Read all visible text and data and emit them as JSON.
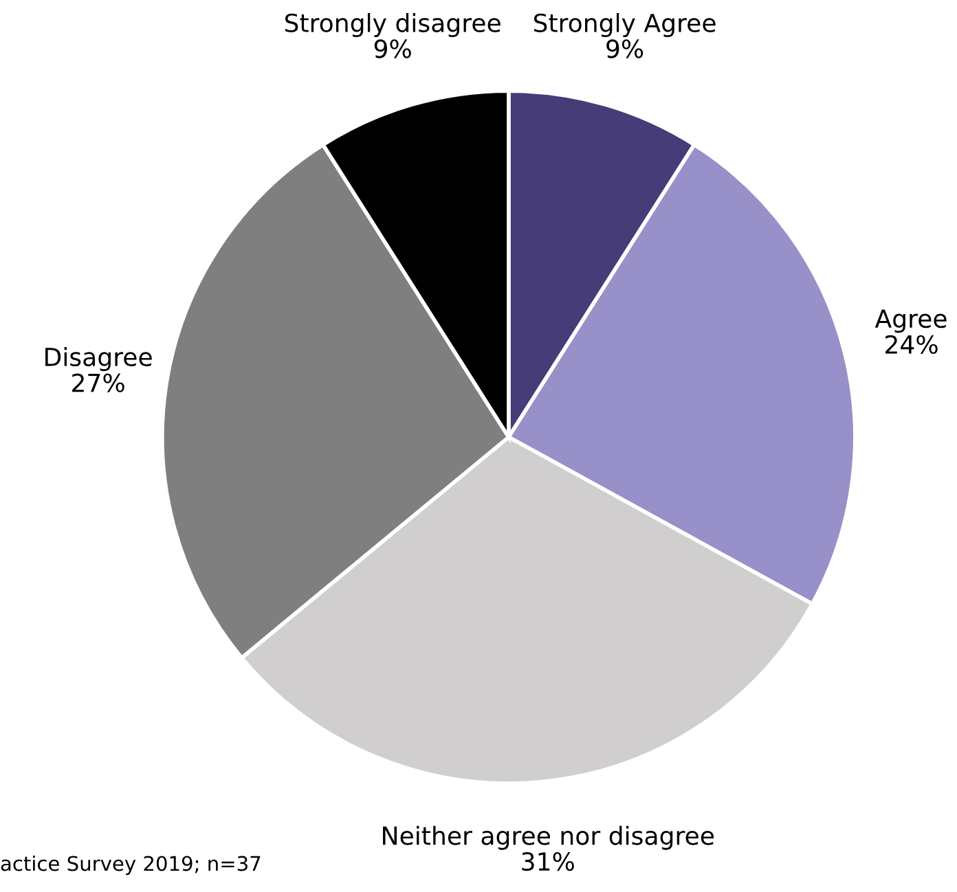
{
  "chart_data": {
    "type": "pie",
    "categories": [
      "Strongly Agree",
      "Agree",
      "Neither agree nor disagree",
      "Disagree",
      "Strongly disagree"
    ],
    "values": [
      9,
      24,
      31,
      27,
      9
    ],
    "colors": [
      "#463c78",
      "#9890c8",
      "#d0cece",
      "#7f7f7f",
      "#000000"
    ],
    "value_labels": [
      "9%",
      "24%",
      "31%",
      "27%",
      "9%"
    ],
    "annotations": [
      "actice Survey 2019; n=37"
    ]
  }
}
